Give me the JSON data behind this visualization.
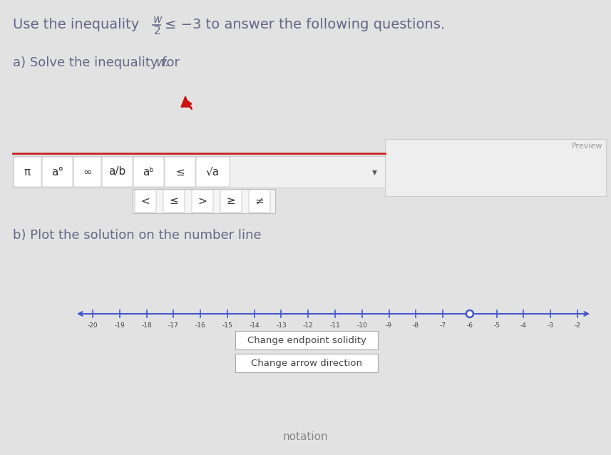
{
  "title_prefix": "Use the inequality",
  "fraction_num": "w",
  "fraction_den": "2",
  "title_suffix": "≤ −3 to answer the following questions.",
  "part_a": "a) Solve the inequality for ",
  "part_a_var": "w",
  "preview_label": "Preview",
  "toolbar_symbols": [
    "π",
    "a°",
    "∞",
    "a/b",
    "aᵇ",
    "≤",
    "√a"
  ],
  "dropdown_symbols": [
    "<",
    "≤",
    ">",
    "≥",
    "≠"
  ],
  "part_b": "b) Plot the solution on the number line",
  "btn1": "Change endpoint solidity",
  "btn2": "Change arrow direction",
  "bottom_text": "notation",
  "nl_min": -20,
  "nl_max": -2,
  "solution_pt": -6,
  "open_circle": true,
  "line_color": "#4455cc",
  "text_color": "#666688",
  "bg_color": "#e2e2e2",
  "white": "#ffffff",
  "toolbar_red": "#cc2222",
  "btn_border": "#bbbbbb",
  "cursor_red": "#cc1111"
}
